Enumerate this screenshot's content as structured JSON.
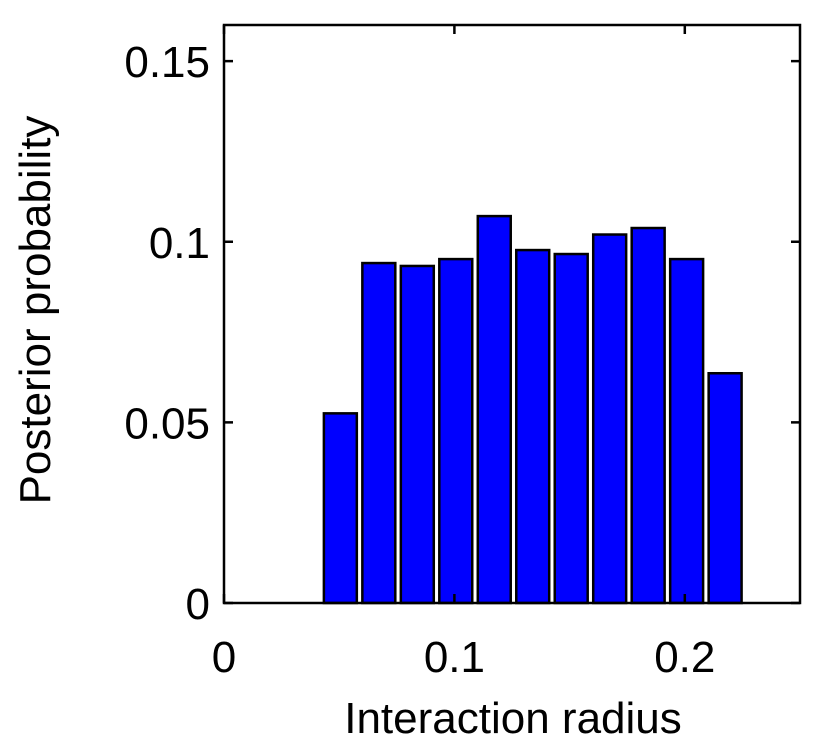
{
  "chart_data": {
    "type": "bar",
    "title": "",
    "xlabel": "Interaction radius",
    "ylabel": "Posterior probability",
    "xlim": [
      0,
      0.25
    ],
    "ylim": [
      0,
      0.16
    ],
    "x_ticks": [
      0,
      0.1,
      0.2
    ],
    "x_tick_labels": [
      "0",
      "0.1",
      "0.2"
    ],
    "y_ticks": [
      0,
      0.05,
      0.1,
      0.15
    ],
    "y_tick_labels": [
      "0",
      "0.05",
      "0.1",
      "0.15"
    ],
    "bar_width": 0.0143,
    "x": [
      0.0505,
      0.0672,
      0.0839,
      0.1006,
      0.1173,
      0.134,
      0.1507,
      0.1674,
      0.1841,
      0.2008,
      0.2175
    ],
    "values": [
      0.0525,
      0.0941,
      0.0933,
      0.0952,
      0.1071,
      0.0977,
      0.0966,
      0.102,
      0.1038,
      0.0952,
      0.0636
    ],
    "bar_color": "#0000ff",
    "edge_color": "#000000",
    "grid": false
  }
}
